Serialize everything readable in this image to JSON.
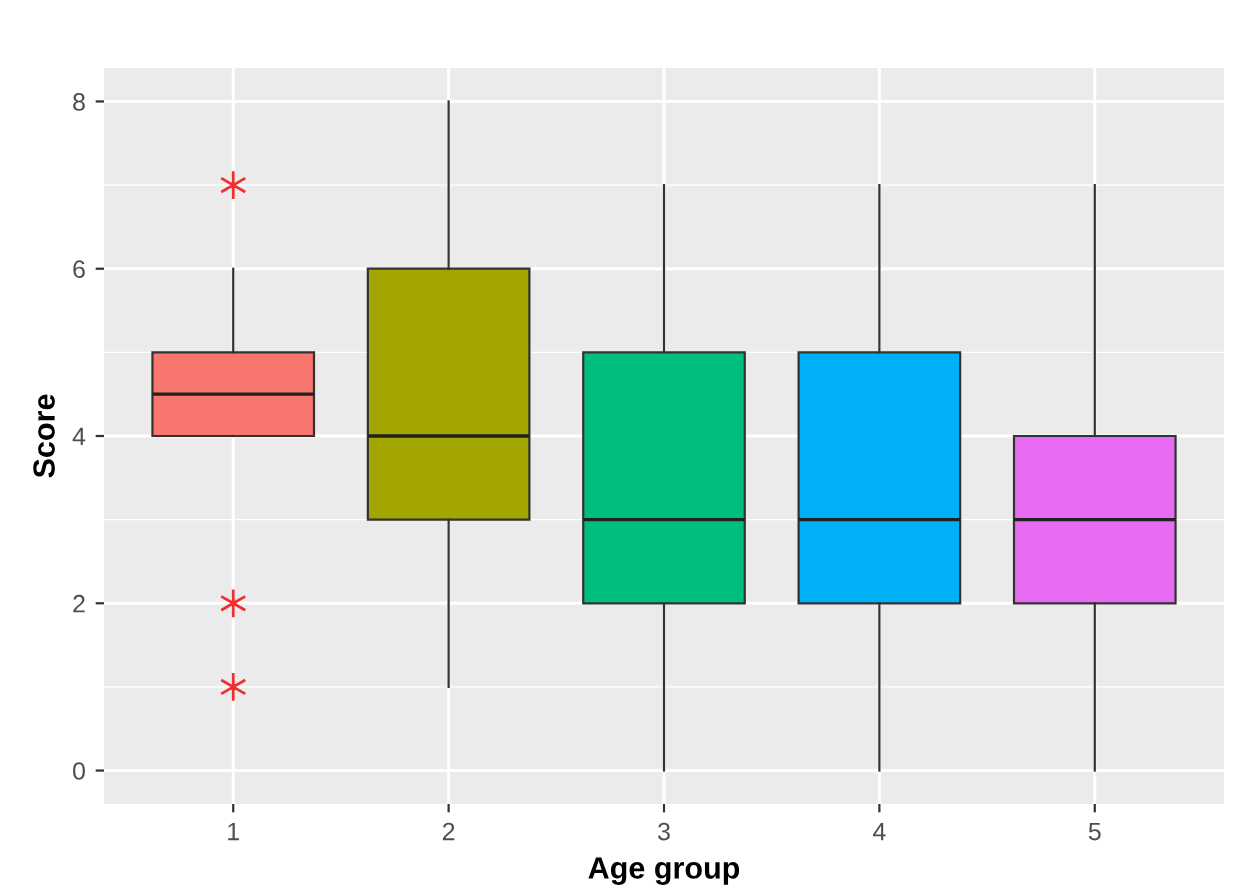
{
  "chart_data": {
    "type": "box",
    "xlabel": "Age group",
    "ylabel": "Score",
    "categories": [
      "1",
      "2",
      "3",
      "4",
      "5"
    ],
    "colors": [
      "#f8766d",
      "#a3a500",
      "#00bf7d",
      "#00b0f6",
      "#e76bf3"
    ],
    "boxes": [
      {
        "low": 4,
        "q1": 4,
        "median": 4.5,
        "q3": 5,
        "high": 6,
        "outliers": [
          7,
          2,
          1
        ]
      },
      {
        "low": 1,
        "q1": 3,
        "median": 4,
        "q3": 6,
        "high": 8
      },
      {
        "low": 0,
        "q1": 2,
        "median": 3,
        "q3": 5,
        "high": 7
      },
      {
        "low": 0,
        "q1": 2,
        "median": 3,
        "q3": 5,
        "high": 7
      },
      {
        "low": 0,
        "q1": 2,
        "median": 3,
        "q3": 4,
        "high": 7
      }
    ],
    "ylim": [
      -0.4,
      8.4
    ],
    "yticks": [
      0,
      2,
      4,
      6,
      8
    ],
    "grid": true,
    "marker": "cross"
  }
}
